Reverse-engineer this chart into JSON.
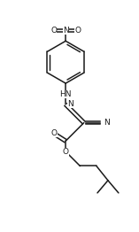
{
  "bg_color": "#ffffff",
  "line_color": "#1a1a1a",
  "line_width": 1.1,
  "font_size": 6.5,
  "figsize": [
    1.57,
    2.62
  ],
  "dpi": 100,
  "xlim": [
    0,
    7
  ],
  "ylim": [
    0,
    12
  ]
}
